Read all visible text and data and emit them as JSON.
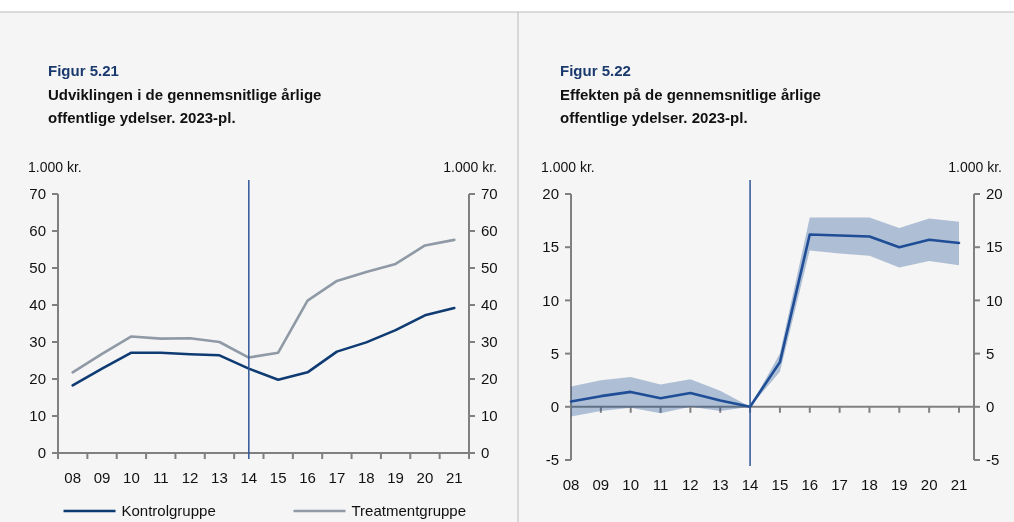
{
  "chart_data": [
    {
      "type": "line",
      "title": "Figur 5.21",
      "subtitle": "Udviklingen i de gennemsnitlige årlige offentlige ydelser. 2023-pl.",
      "ylabel": "1.000 kr.",
      "y2label": "1.000 kr.",
      "categories": [
        "08",
        "09",
        "10",
        "11",
        "12",
        "13",
        "14",
        "15",
        "16",
        "17",
        "18",
        "19",
        "20",
        "21"
      ],
      "series": [
        {
          "name": "Kontrolgruppe",
          "color": "#0f3b73",
          "values": [
            18.3,
            22.8,
            27.1,
            27.1,
            26.7,
            26.4,
            22.8,
            19.8,
            21.8,
            27.4,
            29.9,
            33.2,
            37.2,
            39.2
          ]
        },
        {
          "name": "Treatmentgruppe",
          "color": "#8f9aa6",
          "values": [
            21.8,
            26.8,
            31.5,
            30.9,
            31.0,
            30.0,
            25.8,
            27.1,
            41.2,
            46.5,
            48.9,
            51.1,
            56.1,
            57.6
          ]
        }
      ],
      "ylim": [
        0,
        70
      ],
      "yticks": [
        0,
        10,
        20,
        30,
        40,
        50,
        60,
        70
      ],
      "y2lim": [
        0,
        70
      ],
      "y2ticks": [
        0,
        10,
        20,
        30,
        40,
        50,
        60,
        70
      ],
      "ref_lines": [
        {
          "axis": "x",
          "value": "14",
          "color": "#2e5597"
        }
      ],
      "legend": "bottom",
      "grid": false
    },
    {
      "type": "line",
      "title": "Figur 5.22",
      "subtitle": "Effekten på de gennemsnitlige årlige offentlige ydelser. 2023-pl.",
      "ylabel": "1.000 kr.",
      "y2label": "1.000 kr.",
      "categories": [
        "08",
        "09",
        "10",
        "11",
        "12",
        "13",
        "14",
        "15",
        "16",
        "17",
        "18",
        "19",
        "20",
        "21"
      ],
      "series": [
        {
          "color": "#1f4e96",
          "values": [
            0.5,
            1.0,
            1.4,
            0.8,
            1.3,
            0.6,
            0,
            4.2,
            16.2,
            16.1,
            16.0,
            15.0,
            15.7,
            15.4
          ],
          "lower": [
            -0.9,
            -0.4,
            -0.1,
            -0.6,
            0.0,
            -0.4,
            0,
            3.3,
            14.7,
            14.4,
            14.2,
            13.1,
            13.7,
            13.3
          ],
          "upper": [
            1.9,
            2.5,
            2.8,
            2.1,
            2.6,
            1.5,
            0,
            5.0,
            17.8,
            17.8,
            17.8,
            16.8,
            17.7,
            17.4
          ]
        }
      ],
      "ylim": [
        -5,
        20
      ],
      "yticks": [
        -5,
        0,
        5,
        10,
        15,
        20
      ],
      "y2lim": [
        -5,
        20
      ],
      "y2ticks": [
        -5,
        0,
        5,
        10,
        15,
        20
      ],
      "ref_lines": [
        {
          "axis": "x",
          "value": "14",
          "color": "#2e5597"
        }
      ],
      "legend": false,
      "grid": false
    }
  ]
}
